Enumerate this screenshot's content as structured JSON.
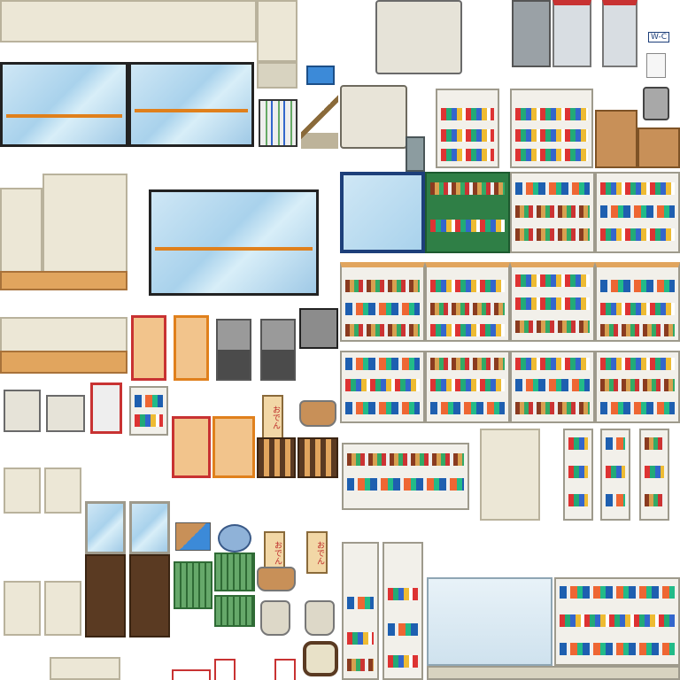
{
  "sheet": {
    "background": "#ffffff",
    "palette": {
      "counter_cream": "#ece7d6",
      "wood": "#e1a55e",
      "glass": "#a9d2ec",
      "accent_orange": "#e0801c",
      "cooler_navy": "#1d3f7a",
      "shelf_green": "#2f7f46",
      "frame_red": "#c83232"
    }
  },
  "labels": {
    "wc_sign": "W-C",
    "oden_sign_1": "おでん",
    "oden_sign_2": "おでん",
    "oden_sign_3": "おでん"
  },
  "tiles": [
    {
      "name": "counter-top-icon"
    },
    {
      "name": "glass-door-cooler-icon"
    },
    {
      "name": "atm-machine-icon"
    },
    {
      "name": "ticket-gate-icon"
    },
    {
      "name": "storage-drawer-icon"
    },
    {
      "name": "blue-tray-icon"
    },
    {
      "name": "umbrella-stand-icon"
    },
    {
      "name": "mop-icon"
    },
    {
      "name": "copy-machine-icon"
    },
    {
      "name": "trash-bin-icon"
    },
    {
      "name": "cardboard-box-icon"
    },
    {
      "name": "drink-shelf-icon"
    },
    {
      "name": "bento-shelf-icon"
    },
    {
      "name": "snack-shelf-icon"
    },
    {
      "name": "cash-register-icon"
    },
    {
      "name": "oden-pot-icon"
    },
    {
      "name": "manju-steamer-icon"
    },
    {
      "name": "shopping-basket-icon"
    },
    {
      "name": "magazine-rack-icon"
    },
    {
      "name": "wall-clock-icon"
    }
  ]
}
